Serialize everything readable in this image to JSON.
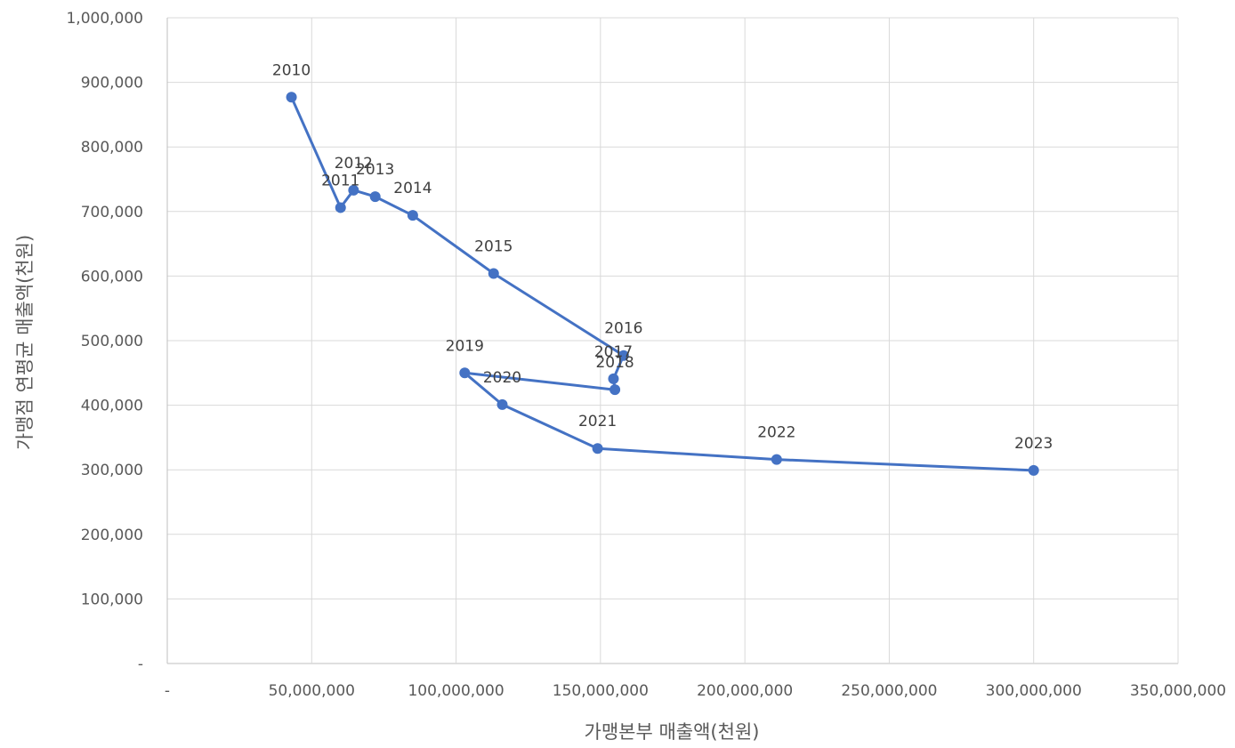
{
  "chart_data": {
    "type": "scatter",
    "mode": "lines+markers",
    "xlabel": "가맹본부 매출액(천원)",
    "ylabel": "가맹점 연평균 매출액(천원)",
    "xlim": [
      0,
      350000000
    ],
    "ylim": [
      0,
      1000000
    ],
    "x_ticks": [
      0,
      50000000,
      100000000,
      150000000,
      200000000,
      250000000,
      300000000,
      350000000
    ],
    "x_tick_labels": [
      "-",
      "50,000,000",
      "100,000,000",
      "150,000,000",
      "200,000,000",
      "250,000,000",
      "300,000,000",
      "350,000,000"
    ],
    "y_ticks": [
      0,
      100000,
      200000,
      300000,
      400000,
      500000,
      600000,
      700000,
      800000,
      900000,
      1000000
    ],
    "y_tick_labels": [
      "-",
      "100,000",
      "200,000",
      "300,000",
      "400,000",
      "500,000",
      "600,000",
      "700,000",
      "800,000",
      "900,000",
      "1,000,000"
    ],
    "grid": true,
    "legend": "none",
    "color": "#4472C4",
    "points": [
      {
        "label": "2010",
        "x": 43000000,
        "y": 877000
      },
      {
        "label": "2011",
        "x": 60000000,
        "y": 706000
      },
      {
        "label": "2012",
        "x": 64500000,
        "y": 733000
      },
      {
        "label": "2013",
        "x": 72000000,
        "y": 723000
      },
      {
        "label": "2014",
        "x": 85000000,
        "y": 694000
      },
      {
        "label": "2015",
        "x": 113000000,
        "y": 604000
      },
      {
        "label": "2016",
        "x": 158000000,
        "y": 477000
      },
      {
        "label": "2017",
        "x": 154500000,
        "y": 441000
      },
      {
        "label": "2018",
        "x": 155000000,
        "y": 424000
      },
      {
        "label": "2019",
        "x": 103000000,
        "y": 450000
      },
      {
        "label": "2020",
        "x": 116000000,
        "y": 401000
      },
      {
        "label": "2021",
        "x": 149000000,
        "y": 333000
      },
      {
        "label": "2022",
        "x": 211000000,
        "y": 316000
      },
      {
        "label": "2023",
        "x": 300000000,
        "y": 299000
      }
    ]
  }
}
